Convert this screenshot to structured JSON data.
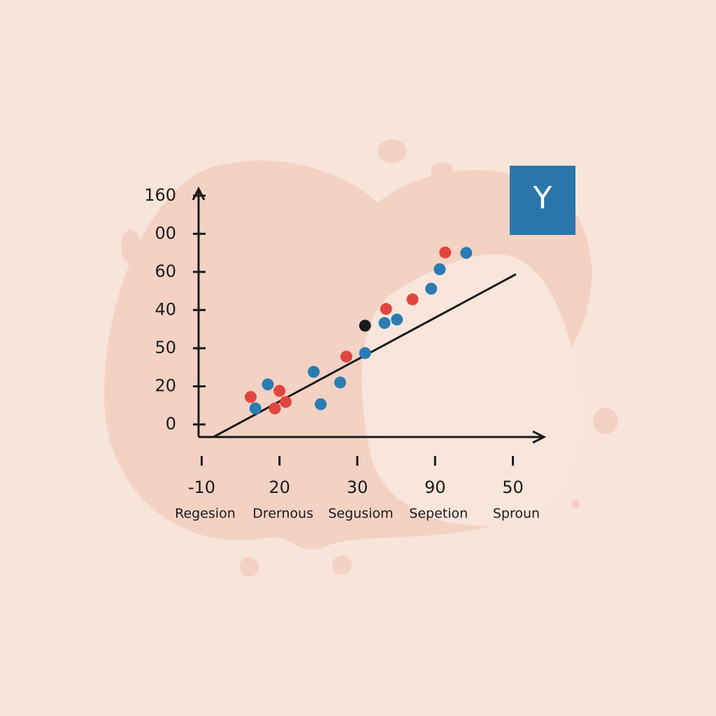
{
  "chart_data": {
    "type": "scatter",
    "badge": "Y",
    "xticks": [
      {
        "value": 0,
        "label": "-10"
      },
      {
        "value": 1,
        "label": "20"
      },
      {
        "value": 2,
        "label": "30"
      },
      {
        "value": 3,
        "label": "90"
      },
      {
        "value": 4,
        "label": "50"
      }
    ],
    "x_group_labels": [
      "Regesion",
      "Drernous",
      "Segusiom",
      "Sepetion",
      "Sproun"
    ],
    "yticks": [
      {
        "value": 0,
        "label": "0"
      },
      {
        "value": 1,
        "label": "20"
      },
      {
        "value": 2,
        "label": "50"
      },
      {
        "value": 3,
        "label": "40"
      },
      {
        "value": 4,
        "label": "60"
      },
      {
        "value": 5,
        "label": "00"
      },
      {
        "value": 6,
        "label": "160"
      }
    ],
    "xlim": [
      -0.04,
      4.4
    ],
    "ylim": [
      -0.33,
      6.18
    ],
    "series": [
      {
        "color": "#e0463f",
        "x": [
          0.63,
          1.0,
          1.08,
          0.94,
          1.86,
          2.37,
          2.71,
          3.13
        ],
        "values": [
          0.72,
          0.88,
          0.59,
          0.42,
          1.78,
          3.03,
          3.28,
          4.51
        ]
      },
      {
        "color": "#2b7bb5",
        "x": [
          0.69,
          0.85,
          1.44,
          1.53,
          1.78,
          2.1,
          2.35,
          2.51,
          2.95,
          3.06,
          3.4
        ],
        "values": [
          0.42,
          1.05,
          1.38,
          0.53,
          1.1,
          1.87,
          2.66,
          2.75,
          3.56,
          4.07,
          4.5
        ]
      },
      {
        "color": "#1a1a1a",
        "x": [
          2.1
        ],
        "values": [
          2.59
        ]
      }
    ],
    "trendline": {
      "x": [
        0.15,
        4.04
      ],
      "values": [
        -0.33,
        3.94
      ]
    }
  }
}
